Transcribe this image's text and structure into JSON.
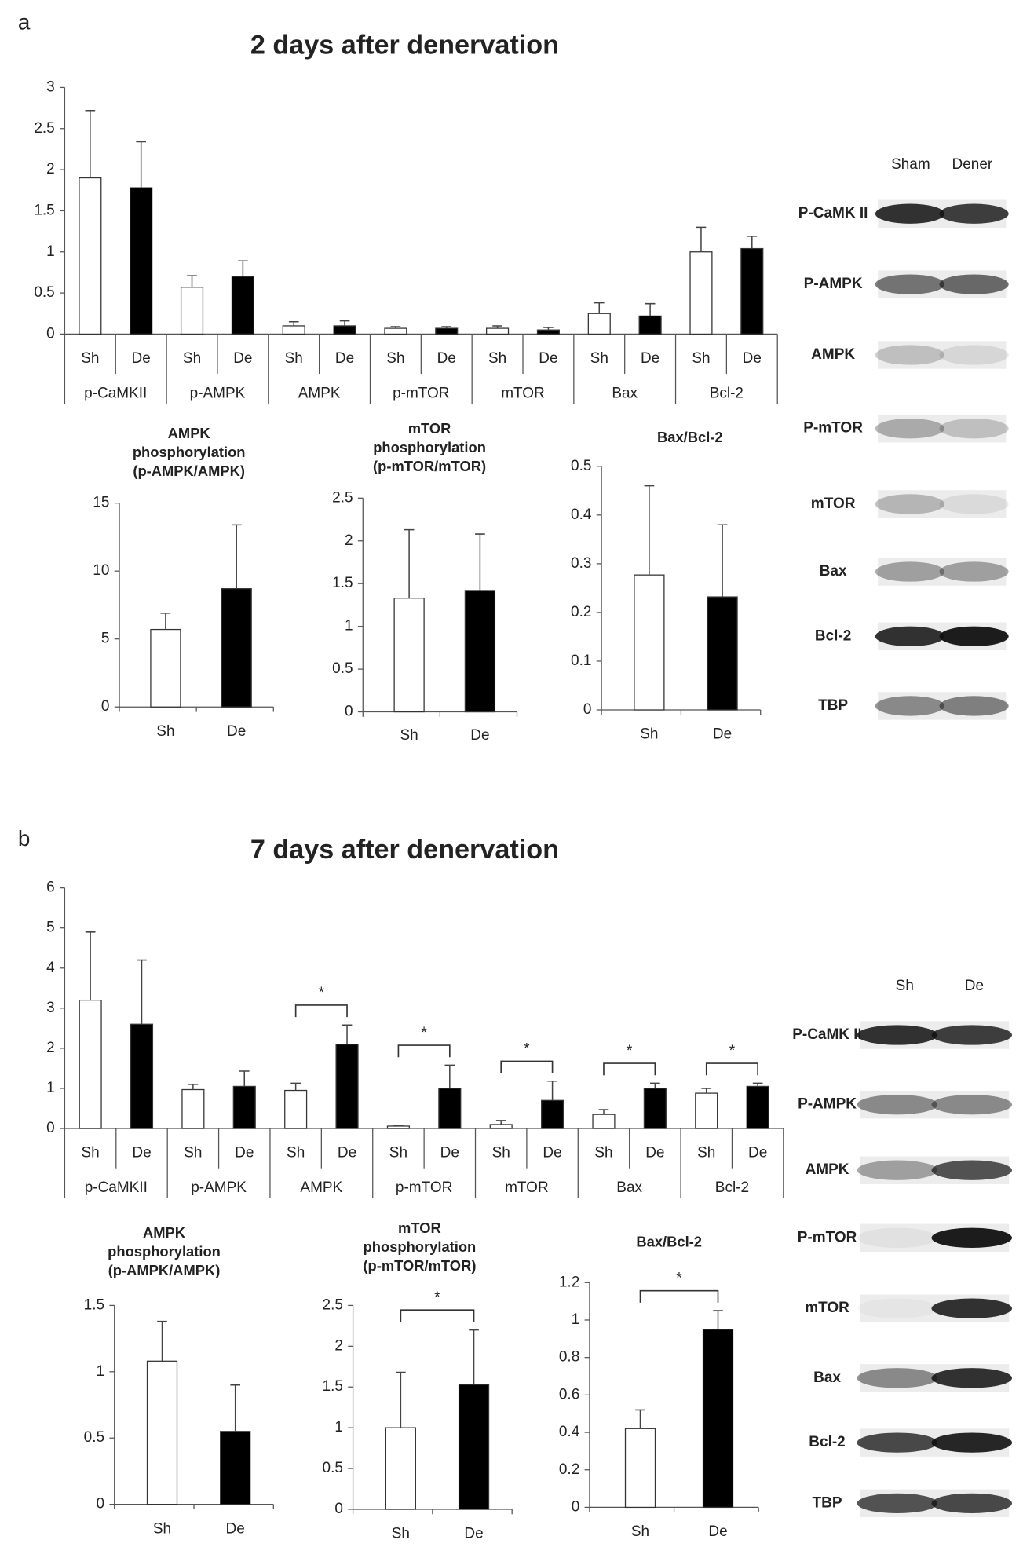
{
  "panel_labels": [
    "a",
    "b"
  ],
  "blots": [
    {
      "columns": [
        "Sham",
        "Dener"
      ],
      "rows": [
        "P-CaMK II",
        "P-AMPK",
        "AMPK",
        "P-mTOR",
        "mTOR",
        "Bax",
        "Bcl-2",
        "TBP"
      ]
    },
    {
      "columns": [
        "Sh",
        "De"
      ],
      "rows": [
        "P-CaMK II",
        "P-AMPK",
        "AMPK",
        "P-mTOR",
        "mTOR",
        "Bax",
        "Bcl-2",
        "TBP"
      ]
    }
  ],
  "chart_data": [
    {
      "type": "grouped_bar",
      "title": "2 days after denervation",
      "groups": [
        "p-CaMKII",
        "p-AMPK",
        "AMPK",
        "p-mTOR",
        "mTOR",
        "Bax",
        "Bcl-2"
      ],
      "series": [
        {
          "name": "Sh",
          "color": "#ffffff",
          "values": [
            1.9,
            0.57,
            0.1,
            0.07,
            0.07,
            0.25,
            1.0
          ],
          "errors": [
            0.82,
            0.14,
            0.05,
            0.02,
            0.03,
            0.13,
            0.3
          ]
        },
        {
          "name": "De",
          "color": "#000000",
          "values": [
            1.78,
            0.7,
            0.1,
            0.07,
            0.05,
            0.22,
            1.04
          ],
          "errors": [
            0.56,
            0.19,
            0.06,
            0.02,
            0.03,
            0.15,
            0.15
          ]
        }
      ],
      "ylim": [
        0,
        3
      ],
      "yticks": [
        0,
        0.5,
        1,
        1.5,
        2,
        2.5,
        3
      ],
      "significance": [
        null,
        null,
        null,
        null,
        null,
        null,
        null
      ]
    },
    {
      "type": "bar",
      "title": [
        "AMPK",
        "phosphorylation",
        "(p-AMPK/AMPK)"
      ],
      "categories": [
        "Sh",
        "De"
      ],
      "colors": [
        "#ffffff",
        "#000000"
      ],
      "values": [
        5.7,
        8.7
      ],
      "errors": [
        1.2,
        4.7
      ],
      "ylim": [
        0,
        15
      ],
      "yticks": [
        0,
        5,
        10,
        15
      ],
      "significance": null
    },
    {
      "type": "bar",
      "title": [
        "mTOR",
        "phosphorylation",
        "(p-mTOR/mTOR)"
      ],
      "categories": [
        "Sh",
        "De"
      ],
      "colors": [
        "#ffffff",
        "#000000"
      ],
      "values": [
        1.33,
        1.42
      ],
      "errors": [
        0.8,
        0.66
      ],
      "ylim": [
        0,
        2.5
      ],
      "yticks": [
        0,
        0.5,
        1,
        1.5,
        2,
        2.5
      ],
      "significance": null
    },
    {
      "type": "bar",
      "title": [
        "Bax/Bcl-2"
      ],
      "categories": [
        "Sh",
        "De"
      ],
      "colors": [
        "#ffffff",
        "#000000"
      ],
      "values": [
        0.277,
        0.232
      ],
      "errors": [
        0.183,
        0.148
      ],
      "ylim": [
        0,
        0.5
      ],
      "yticks": [
        0,
        0.1,
        0.2,
        0.3,
        0.4,
        0.5
      ],
      "significance": null
    },
    {
      "type": "grouped_bar",
      "title": "7 days after denervation",
      "groups": [
        "p-CaMKII",
        "p-AMPK",
        "AMPK",
        "p-mTOR",
        "mTOR",
        "Bax",
        "Bcl-2"
      ],
      "series": [
        {
          "name": "Sh",
          "color": "#ffffff",
          "values": [
            3.2,
            0.97,
            0.95,
            0.06,
            0.1,
            0.35,
            0.88
          ],
          "errors": [
            1.7,
            0.13,
            0.18,
            0.01,
            0.1,
            0.12,
            0.12
          ]
        },
        {
          "name": "De",
          "color": "#000000",
          "values": [
            2.6,
            1.05,
            2.1,
            1.0,
            0.7,
            1.0,
            1.05
          ],
          "errors": [
            1.6,
            0.38,
            0.48,
            0.58,
            0.48,
            0.13,
            0.08
          ]
        }
      ],
      "ylim": [
        0,
        6
      ],
      "yticks": [
        0,
        1,
        2,
        3,
        4,
        5,
        6
      ],
      "significance": [
        null,
        null,
        "*",
        "*",
        "*",
        "*",
        "*"
      ]
    },
    {
      "type": "bar",
      "title": [
        "AMPK",
        "phosphorylation",
        "(p-AMPK/AMPK)"
      ],
      "categories": [
        "Sh",
        "De"
      ],
      "colors": [
        "#ffffff",
        "#000000"
      ],
      "values": [
        1.08,
        0.55
      ],
      "errors": [
        0.3,
        0.35
      ],
      "ylim": [
        0,
        1.5
      ],
      "yticks": [
        0,
        0.5,
        1,
        1.5
      ],
      "significance": null
    },
    {
      "type": "bar",
      "title": [
        "mTOR",
        "phosphorylation",
        "(p-mTOR/mTOR)"
      ],
      "categories": [
        "Sh",
        "De"
      ],
      "colors": [
        "#ffffff",
        "#000000"
      ],
      "values": [
        1.0,
        1.53
      ],
      "errors": [
        0.68,
        0.67
      ],
      "ylim": [
        0,
        2.5
      ],
      "yticks": [
        0,
        0.5,
        1,
        1.5,
        2,
        2.5
      ],
      "significance": "*"
    },
    {
      "type": "bar",
      "title": [
        "Bax/Bcl-2"
      ],
      "categories": [
        "Sh",
        "De"
      ],
      "colors": [
        "#ffffff",
        "#000000"
      ],
      "values": [
        0.42,
        0.95
      ],
      "errors": [
        0.1,
        0.1
      ],
      "ylim": [
        0,
        1.2
      ],
      "yticks": [
        0,
        0.2,
        0.4,
        0.6,
        0.8,
        1,
        1.2
      ],
      "significance": "*"
    }
  ]
}
